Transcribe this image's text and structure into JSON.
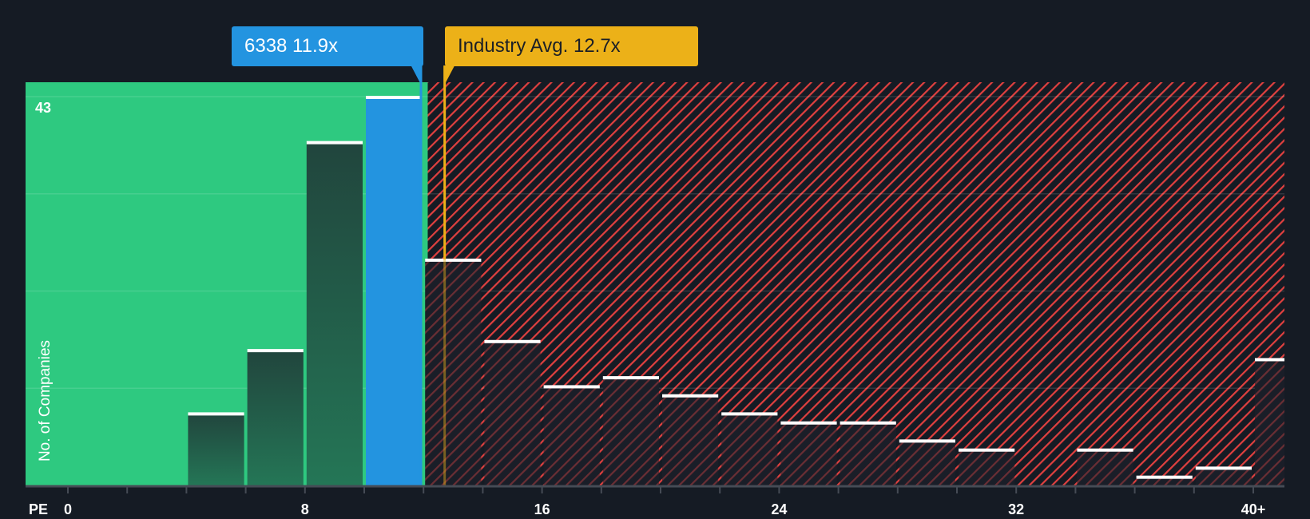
{
  "callouts": {
    "company": {
      "label": "6338 11.9x",
      "ticker": "6338",
      "value": 11.9,
      "color": "#2394e0"
    },
    "industry": {
      "label": "Industry Avg. 12.7x",
      "value": 12.7,
      "color": "#ecb118"
    }
  },
  "axis": {
    "x_title": "PE",
    "y_title": "No. of Companies",
    "y_max_label": "43",
    "x_ticks": [
      {
        "value": 0,
        "label": "0"
      },
      {
        "value": 8,
        "label": "8"
      },
      {
        "value": 16,
        "label": "16"
      },
      {
        "value": 24,
        "label": "24"
      },
      {
        "value": 32,
        "label": "32"
      },
      {
        "value": 40,
        "label": "40+"
      }
    ]
  },
  "colors": {
    "background": "#151b24",
    "undervalued_zone": "#2ec980",
    "overvalued_hatch": "#e0403f",
    "company_bar": "#2394e0",
    "industry_line": "#ecb118",
    "bar_cap": "#ffffff"
  },
  "chart_data": {
    "type": "bar",
    "title": "PE ratio distribution vs industry",
    "xlabel": "PE",
    "ylabel": "No. of Companies",
    "bin_width": 2,
    "categories": [
      "0-2",
      "2-4",
      "4-6",
      "6-8",
      "8-10",
      "10-12",
      "12-14",
      "14-16",
      "16-18",
      "18-20",
      "20-22",
      "22-24",
      "24-26",
      "26-28",
      "28-30",
      "30-32",
      "32-34",
      "34-36",
      "36-38",
      "38-40",
      "40+"
    ],
    "bin_starts": [
      0,
      2,
      4,
      6,
      8,
      10,
      12,
      14,
      16,
      18,
      20,
      22,
      24,
      26,
      28,
      30,
      32,
      34,
      36,
      38,
      40
    ],
    "values": [
      0,
      0,
      8,
      15,
      38,
      43,
      25,
      16,
      11,
      12,
      10,
      8,
      7,
      7,
      5,
      4,
      0,
      4,
      1,
      2,
      14
    ],
    "highlight_bin": "10-12",
    "company_pe": 11.9,
    "industry_avg_pe": 12.7,
    "ylim": [
      0,
      43
    ],
    "xlim": [
      0,
      40
    ],
    "grid": true,
    "legend": "none"
  }
}
